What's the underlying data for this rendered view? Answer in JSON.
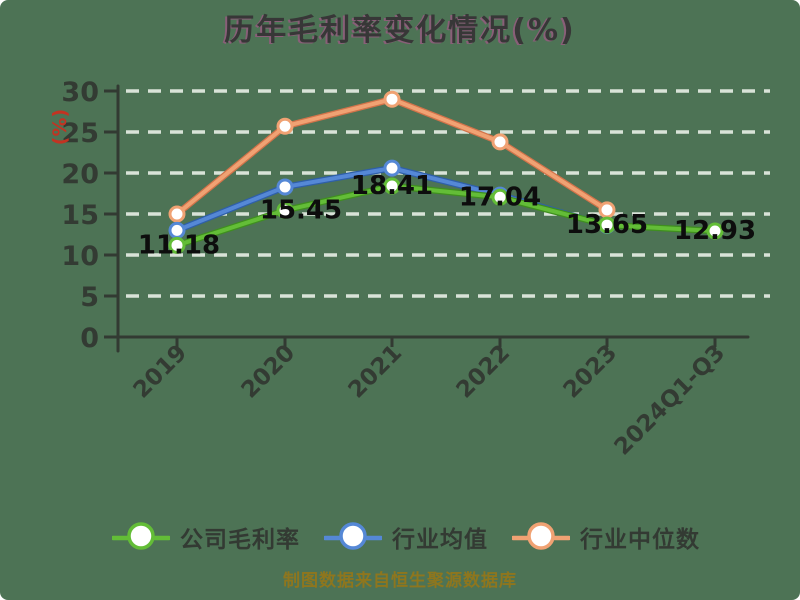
{
  "footer": {
    "text": "制图数据来自恒生聚源数据库"
  },
  "colors": {
    "background": "#4d7355",
    "title": "#373737",
    "title_fringe": "#d246a5",
    "axis": "#323a32",
    "tick_label": "#333b33",
    "gridline": "#e9f0e7",
    "y_unit_label": "#c23322",
    "data_label": "#0d0d0d",
    "marker_fill": "#ffffff",
    "legend_text": "#333a33",
    "footer_text": "#8e761e"
  },
  "chart_data": {
    "type": "line",
    "title": "历年毛利率变化情况(%)",
    "xlabel": "",
    "ylabel": "(%)",
    "ylim": [
      0,
      30
    ],
    "yticks": [
      0,
      5,
      10,
      15,
      20,
      25,
      30
    ],
    "grid": "horizontal dashed",
    "legend_position": "bottom",
    "categories": [
      "2019",
      "2020",
      "2021",
      "2022",
      "2023",
      "2024Q1-Q3"
    ],
    "series": [
      {
        "id": "company-margin",
        "name": "公司毛利率",
        "color": "#63bd37",
        "color_dark": "#3f8f1f",
        "values": [
          11.18,
          15.45,
          18.41,
          17.04,
          13.65,
          12.93
        ],
        "labeled": true
      },
      {
        "id": "industry-mean",
        "name": "行业均值",
        "color": "#5588d6",
        "color_dark": "#2f5fa8",
        "values": [
          13.0,
          18.3,
          20.6,
          17.3,
          13.6,
          null
        ],
        "labeled": false
      },
      {
        "id": "industry-median",
        "name": "行业中位数",
        "color": "#f0a273",
        "color_dark": "#d2734a",
        "values": [
          15.0,
          25.7,
          29.0,
          23.8,
          15.5,
          null
        ],
        "labeled": false
      }
    ],
    "data_labels": [
      "11.18",
      "15.45",
      "18.41",
      "17.04",
      "13.65",
      "12.93"
    ]
  }
}
